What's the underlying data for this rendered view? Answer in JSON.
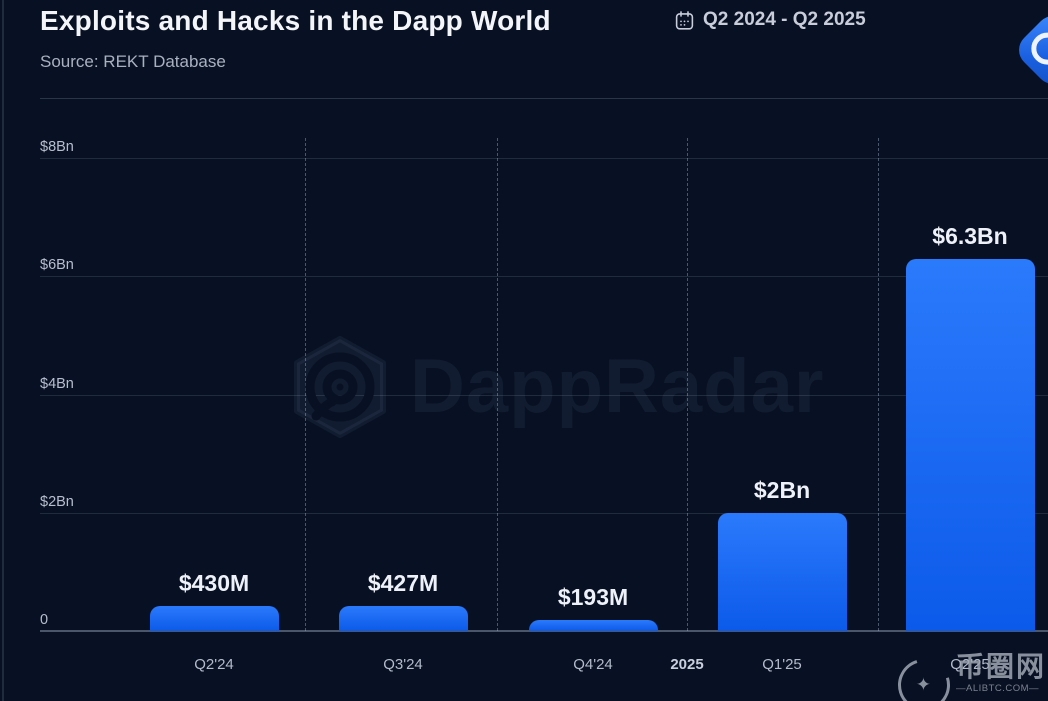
{
  "page": {
    "background": "#081123"
  },
  "header": {
    "title": "Exploits and Hacks in the Dapp World",
    "source": "Source: REKT Database",
    "date_range": "Q2 2024 - Q2 2025"
  },
  "chart_data": {
    "type": "bar",
    "title": "Exploits and Hacks in the Dapp World",
    "source": "REKT Database",
    "categories": [
      "Q2'24",
      "Q3'24",
      "Q4'24",
      "Q1'25",
      "Q2'25"
    ],
    "values_usd_millions": [
      430,
      427,
      193,
      2000,
      6300
    ],
    "value_labels": [
      "$430M",
      "$427M",
      "$193M",
      "$2Bn",
      "$6.3Bn"
    ],
    "y_axis": {
      "tick_labels": [
        "$8Bn",
        "$6Bn",
        "$4Bn",
        "$2Bn",
        "0"
      ],
      "tick_values_usd_millions": [
        8000,
        6000,
        4000,
        2000,
        0
      ],
      "range_usd_millions": [
        0,
        8600
      ]
    },
    "x_axis": {
      "year_divider_label": "2025"
    },
    "grid": {
      "horizontal": "solid",
      "vertical": "dashed quarter separators"
    },
    "legend": "none",
    "colors": {
      "bar_top": "#2b7afc",
      "bar_bottom": "#0c5ae9"
    }
  },
  "watermark_center": {
    "text": "DappRadar",
    "icon": "dappradar-hexagon-radar-icon"
  },
  "watermark_corner": {
    "site_name": "币圈网",
    "site_url_label": "—ALIBTC.COM—",
    "icon": "coin-star-icon"
  },
  "icons": {
    "calendar": "calendar-icon",
    "logo": "dappradar-app-logo"
  }
}
